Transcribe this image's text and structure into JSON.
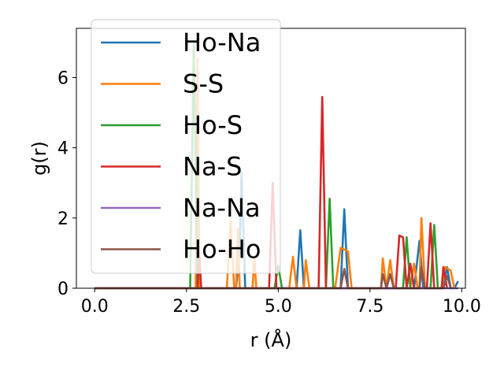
{
  "chart_data": {
    "type": "line",
    "xlabel": "r (Å)",
    "ylabel": "g(r)",
    "xlim": [
      -0.5,
      10.1
    ],
    "ylim": [
      0,
      7.4
    ],
    "xticks": [
      0.0,
      2.5,
      5.0,
      7.5,
      10.0
    ],
    "xtick_labels": [
      "0.0",
      "2.5",
      "5.0",
      "7.5",
      "10.0"
    ],
    "yticks": [
      0,
      2,
      4,
      6
    ],
    "ytick_labels": [
      "0",
      "2",
      "4",
      "6"
    ],
    "grid": false,
    "legend": "upper-left",
    "series": [
      {
        "name": "Ho-Na",
        "color": "#1f77b4",
        "points": [
          [
            0,
            0
          ],
          [
            3.85,
            0
          ],
          [
            3.95,
            1.1
          ],
          [
            4.0,
            3.3
          ],
          [
            4.1,
            0
          ],
          [
            5.5,
            0
          ],
          [
            5.6,
            1.65
          ],
          [
            5.7,
            0
          ],
          [
            6.7,
            0
          ],
          [
            6.8,
            2.25
          ],
          [
            6.9,
            0
          ],
          [
            8.7,
            0
          ],
          [
            8.85,
            1.35
          ],
          [
            8.95,
            0
          ],
          [
            9.5,
            0
          ],
          [
            9.6,
            0.6
          ],
          [
            9.7,
            0
          ],
          [
            9.8,
            0
          ],
          [
            9.9,
            0.2
          ]
        ]
      },
      {
        "name": "S-S",
        "color": "#ff7f0e",
        "points": [
          [
            0,
            0
          ],
          [
            2.75,
            0
          ],
          [
            2.8,
            6.55
          ],
          [
            2.85,
            0
          ],
          [
            3.6,
            0
          ],
          [
            3.7,
            1.9
          ],
          [
            3.8,
            0
          ],
          [
            3.85,
            0
          ],
          [
            3.9,
            1.7
          ],
          [
            3.95,
            0
          ],
          [
            4.3,
            0
          ],
          [
            4.35,
            0.9
          ],
          [
            4.4,
            0
          ],
          [
            5.3,
            0
          ],
          [
            5.4,
            0.9
          ],
          [
            5.5,
            0
          ],
          [
            5.7,
            0
          ],
          [
            5.75,
            0.8
          ],
          [
            5.85,
            0
          ],
          [
            6.55,
            0
          ],
          [
            6.7,
            1.15
          ],
          [
            6.9,
            1.05
          ],
          [
            7.0,
            0
          ],
          [
            7.8,
            0
          ],
          [
            7.85,
            0.85
          ],
          [
            7.95,
            0
          ],
          [
            8.05,
            0.8
          ],
          [
            8.15,
            0
          ],
          [
            8.6,
            0
          ],
          [
            8.7,
            0.7
          ],
          [
            8.8,
            0
          ],
          [
            8.85,
            0
          ],
          [
            8.9,
            2.0
          ],
          [
            9.0,
            0
          ],
          [
            9.45,
            0
          ],
          [
            9.55,
            0.6
          ],
          [
            9.7,
            0.5
          ],
          [
            9.8,
            0
          ]
        ]
      },
      {
        "name": "Ho-S",
        "color": "#2ca02c",
        "points": [
          [
            0,
            0
          ],
          [
            2.6,
            0
          ],
          [
            2.7,
            7.0
          ],
          [
            2.8,
            0
          ],
          [
            4.9,
            0
          ],
          [
            5.0,
            0.65
          ],
          [
            5.1,
            0
          ],
          [
            6.3,
            0
          ],
          [
            6.4,
            2.55
          ],
          [
            6.5,
            0
          ],
          [
            8.4,
            0
          ],
          [
            8.5,
            1.45
          ],
          [
            8.6,
            0
          ],
          [
            9.15,
            0
          ],
          [
            9.25,
            1.8
          ],
          [
            9.35,
            0
          ]
        ]
      },
      {
        "name": "Na-S",
        "color": "#d62728",
        "points": [
          [
            0,
            0
          ],
          [
            2.8,
            0
          ],
          [
            2.85,
            1.0
          ],
          [
            2.9,
            0
          ],
          [
            4.75,
            0
          ],
          [
            4.85,
            3.0
          ],
          [
            4.95,
            0
          ],
          [
            6.1,
            0
          ],
          [
            6.2,
            5.45
          ],
          [
            6.3,
            0
          ],
          [
            8.2,
            0
          ],
          [
            8.3,
            1.5
          ],
          [
            8.4,
            1.45
          ],
          [
            8.5,
            0
          ],
          [
            8.5,
            0
          ],
          [
            8.6,
            0.7
          ],
          [
            8.7,
            0
          ],
          [
            9.05,
            0
          ],
          [
            9.15,
            1.85
          ],
          [
            9.25,
            0
          ],
          [
            9.45,
            0
          ],
          [
            9.5,
            0.6
          ],
          [
            9.6,
            0
          ]
        ]
      },
      {
        "name": "Na-Na",
        "color": "#9467bd",
        "points": [
          [
            0,
            0
          ],
          [
            9.9,
            0
          ]
        ]
      },
      {
        "name": "Ho-Ho",
        "color": "#8c564b",
        "points": [
          [
            0,
            0
          ],
          [
            6.7,
            0
          ],
          [
            6.8,
            0.55
          ],
          [
            6.9,
            0
          ],
          [
            7.8,
            0
          ],
          [
            7.85,
            0.4
          ],
          [
            7.95,
            0
          ],
          [
            8.05,
            0.4
          ],
          [
            8.15,
            0
          ],
          [
            8.85,
            0
          ],
          [
            8.9,
            0.6
          ],
          [
            9.0,
            0
          ],
          [
            9.5,
            0
          ],
          [
            9.6,
            0.35
          ],
          [
            9.7,
            0
          ]
        ]
      }
    ]
  }
}
